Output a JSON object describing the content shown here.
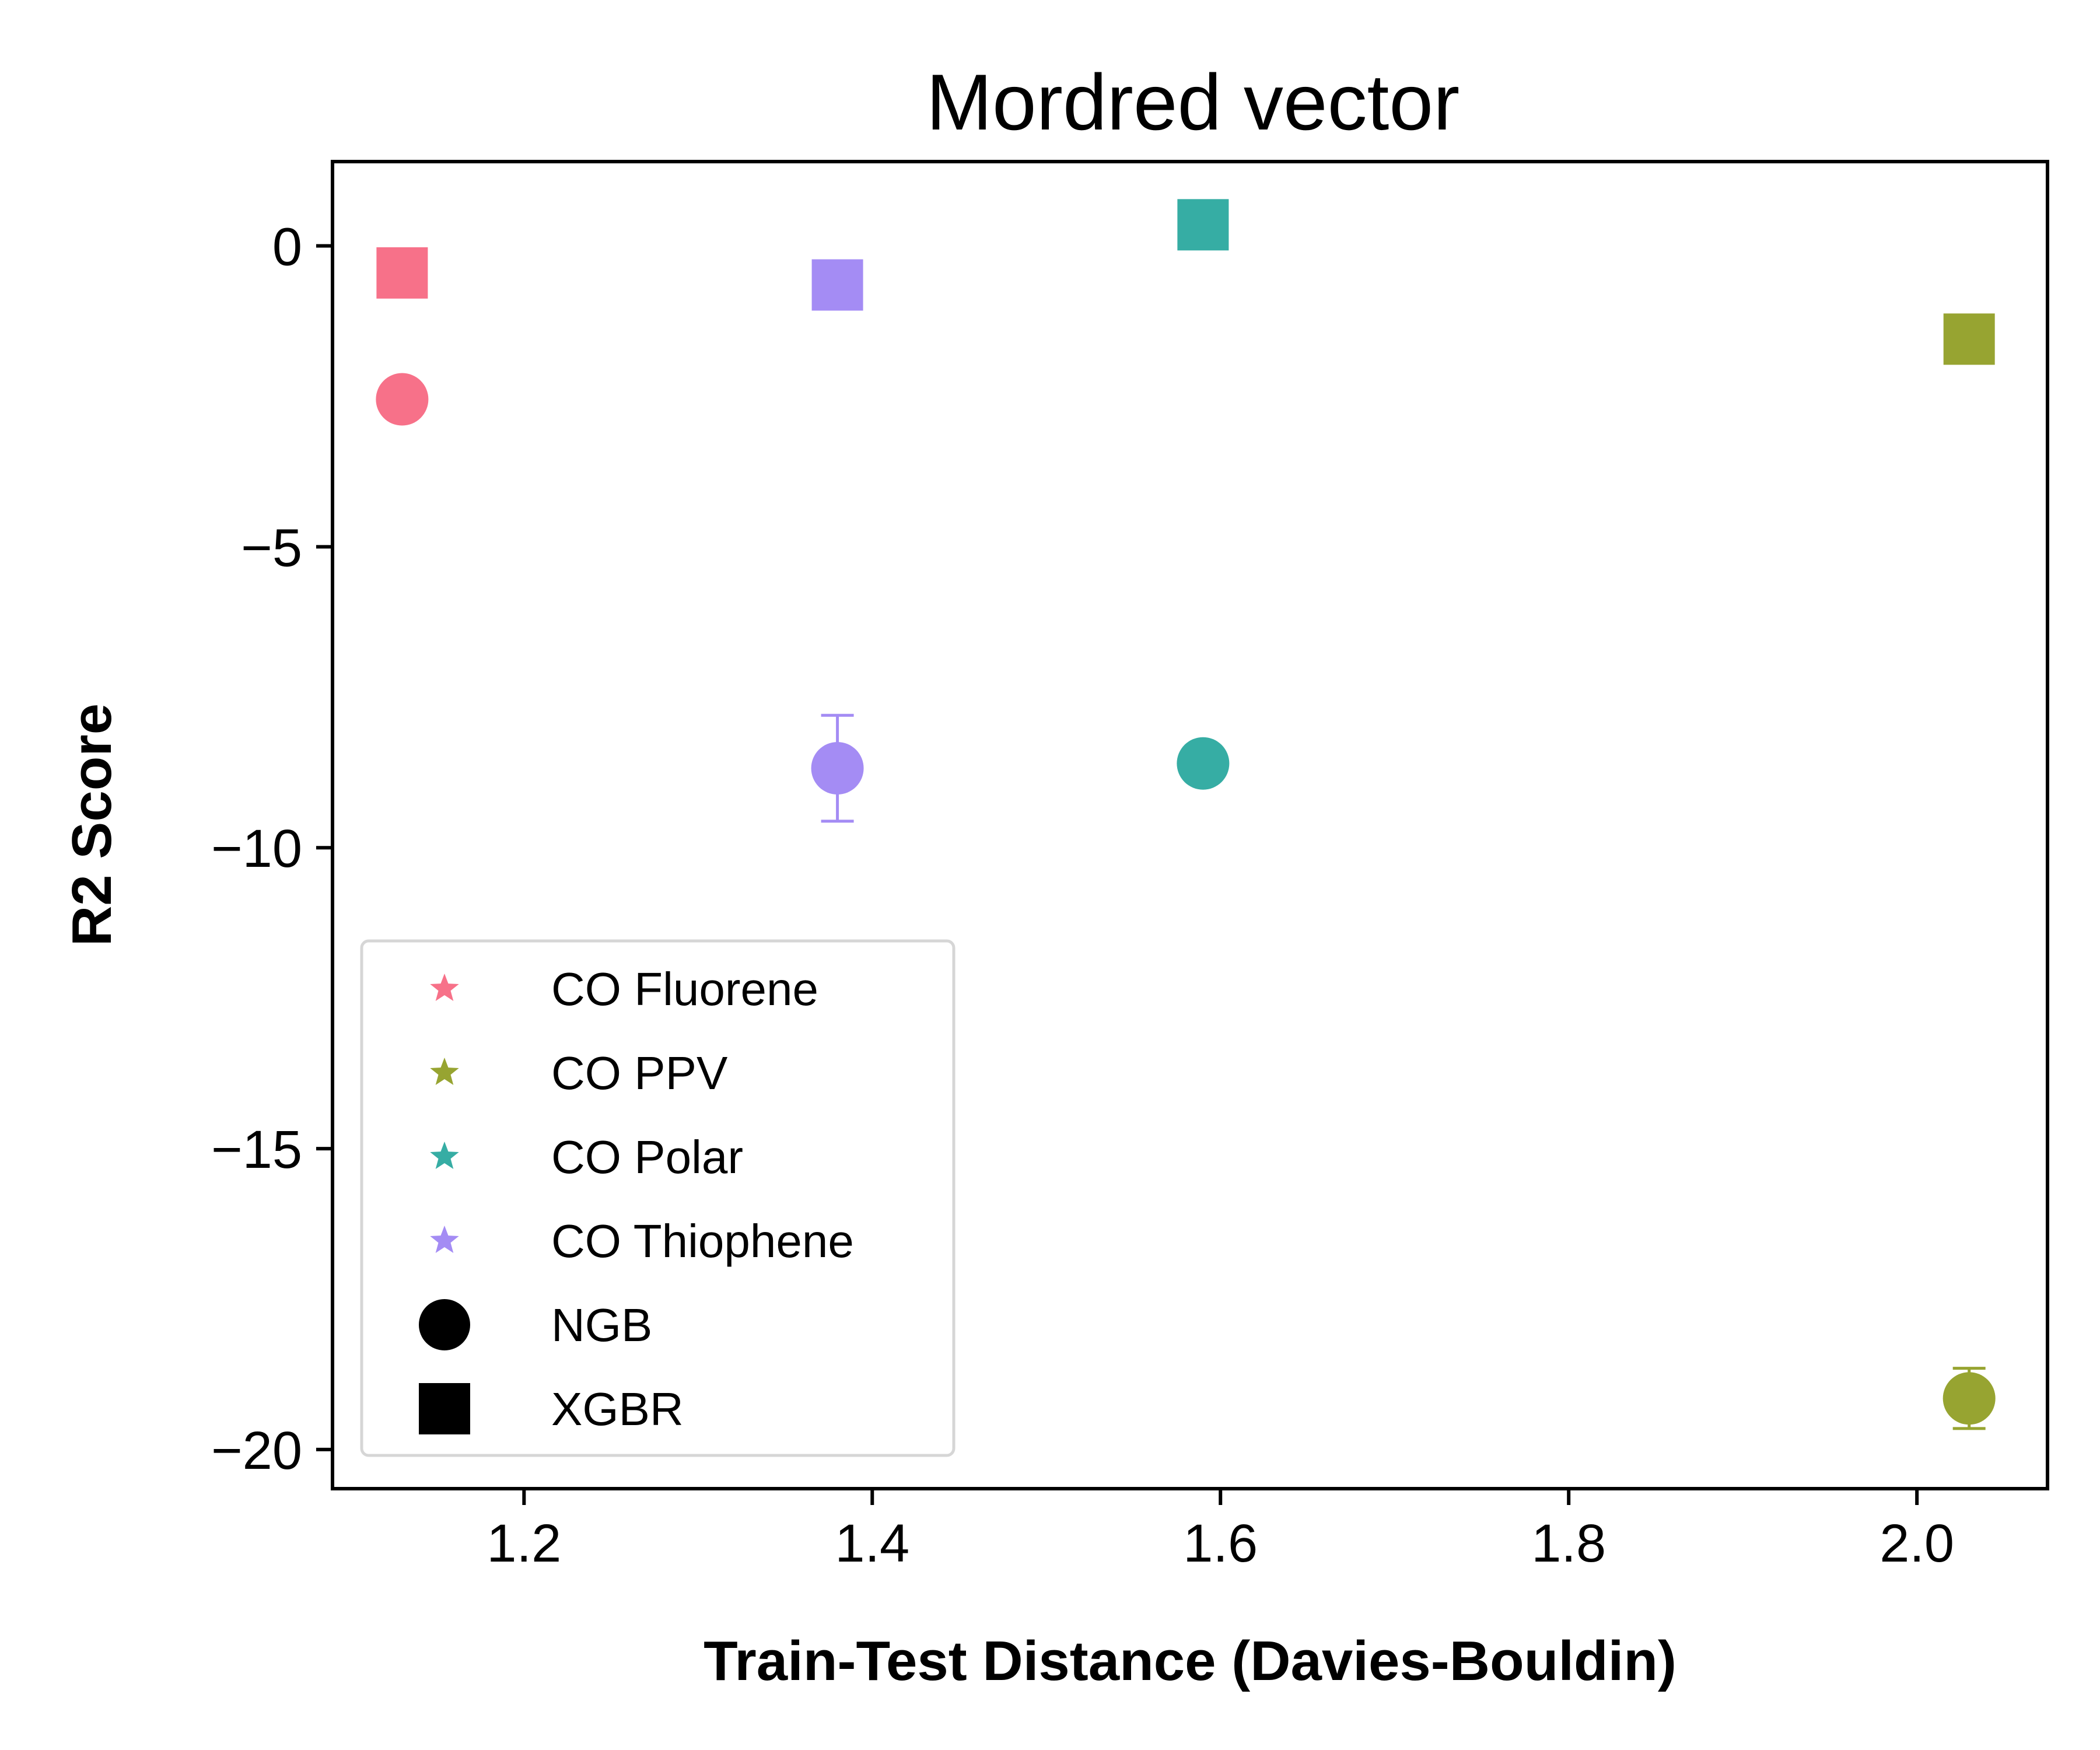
{
  "chart_data": {
    "type": "scatter",
    "title": "Mordred vector",
    "xlabel": "Train-Test Distance (Davies-Bouldin)",
    "ylabel": "R2 Score",
    "xlim": [
      1.09,
      2.075
    ],
    "ylim": [
      -20.65,
      1.4
    ],
    "xticks": [
      1.2,
      1.4,
      1.6,
      1.8,
      2.0
    ],
    "xtick_labels": [
      "1.2",
      "1.4",
      "1.6",
      "1.8",
      "2.0"
    ],
    "yticks": [
      0,
      -5,
      -10,
      -15,
      -20
    ],
    "ytick_labels": [
      "0",
      "−5",
      "−10",
      "−15",
      "−20"
    ],
    "grid": false,
    "legend_position": "lower-left",
    "groups": [
      {
        "name": "CO Fluorene",
        "color": "#f77189",
        "x": 1.13,
        "ngb": -2.55,
        "ngb_err": 0.15,
        "xgbr": -0.45,
        "xgbr_err": 0.1
      },
      {
        "name": "CO PPV",
        "color": "#97a431",
        "x": 2.03,
        "ngb": -19.15,
        "ngb_err": 0.5,
        "xgbr": -1.55,
        "xgbr_err": 0.1
      },
      {
        "name": "CO Polar",
        "color": "#36ada4",
        "x": 1.59,
        "ngb": -8.6,
        "ngb_err": 0.2,
        "xgbr": 0.35,
        "xgbr_err": 0.1
      },
      {
        "name": "CO Thiophene",
        "color": "#a48cf4",
        "x": 1.38,
        "ngb": -8.68,
        "ngb_err": 0.88,
        "xgbr": -0.65,
        "xgbr_err": 0.1
      }
    ],
    "models": [
      {
        "name": "NGB",
        "marker": "circle"
      },
      {
        "name": "XGBR",
        "marker": "square"
      }
    ]
  }
}
